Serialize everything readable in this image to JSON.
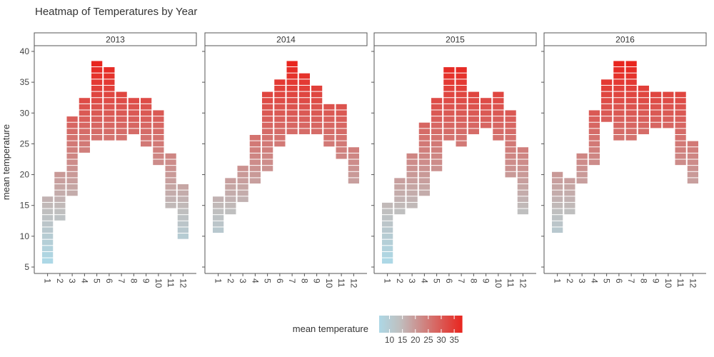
{
  "chart_data": {
    "type": "heatmap",
    "title": "Heatmap of Temperatures by Year",
    "ylabel": "mean temperature",
    "xlabel": "",
    "ylim": [
      5,
      40
    ],
    "y_ticks": [
      5,
      10,
      15,
      20,
      25,
      30,
      35,
      40
    ],
    "x_ticks": [
      "1",
      "2",
      "3",
      "4",
      "5",
      "6",
      "7",
      "8",
      "9",
      "10",
      "11",
      "12"
    ],
    "facet_variable": "year",
    "fill_variable": "mean temperature",
    "color_scale": {
      "low": "#add8e6",
      "mid": "#bfbfbf",
      "high": "#e8261f",
      "limits": [
        6,
        38
      ]
    },
    "legend": {
      "title": "mean temperature",
      "breaks": [
        10,
        15,
        20,
        25,
        30,
        35
      ],
      "position": "bottom"
    },
    "facets": [
      {
        "label": "2013",
        "ranges": [
          [
            6,
            16
          ],
          [
            13,
            20
          ],
          [
            17,
            29
          ],
          [
            24,
            32
          ],
          [
            26,
            38
          ],
          [
            26,
            37
          ],
          [
            26,
            33
          ],
          [
            27,
            32
          ],
          [
            25,
            32
          ],
          [
            22,
            30
          ],
          [
            15,
            23
          ],
          [
            10,
            18
          ]
        ]
      },
      {
        "label": "2014",
        "ranges": [
          [
            11,
            16
          ],
          [
            14,
            19
          ],
          [
            16,
            21
          ],
          [
            19,
            26
          ],
          [
            21,
            33
          ],
          [
            25,
            35
          ],
          [
            27,
            38
          ],
          [
            27,
            36
          ],
          [
            27,
            34
          ],
          [
            25,
            31
          ],
          [
            23,
            31
          ],
          [
            19,
            24
          ]
        ]
      },
      {
        "label": "2015",
        "ranges": [
          [
            6,
            15
          ],
          [
            14,
            19
          ],
          [
            15,
            23
          ],
          [
            17,
            28
          ],
          [
            21,
            32
          ],
          [
            26,
            37
          ],
          [
            25,
            37
          ],
          [
            27,
            33
          ],
          [
            28,
            32
          ],
          [
            26,
            33
          ],
          [
            20,
            30
          ],
          [
            14,
            24
          ]
        ]
      },
      {
        "label": "2016",
        "ranges": [
          [
            11,
            20
          ],
          [
            14,
            19
          ],
          [
            19,
            23
          ],
          [
            22,
            30
          ],
          [
            29,
            35
          ],
          [
            26,
            38
          ],
          [
            26,
            38
          ],
          [
            27,
            34
          ],
          [
            28,
            33
          ],
          [
            28,
            33
          ],
          [
            22,
            33
          ],
          [
            19,
            25
          ]
        ]
      }
    ]
  }
}
